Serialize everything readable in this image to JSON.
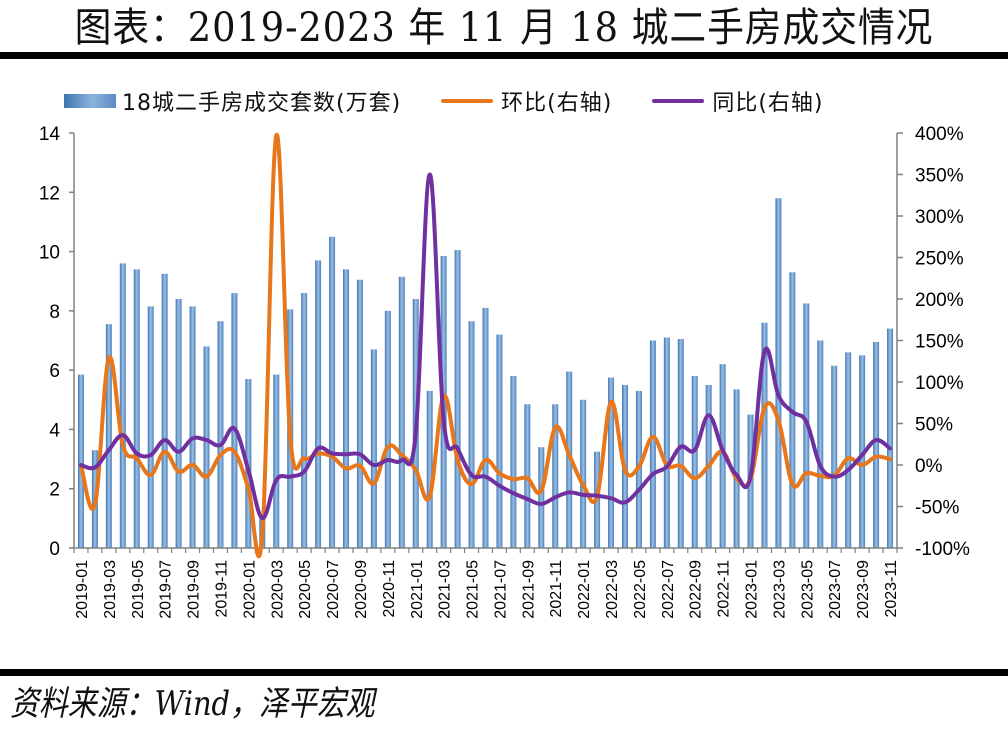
{
  "header": {
    "title": "图表：2019-2023 年 11 月 18 城二手房成交情况"
  },
  "footer": {
    "source": "资料来源：Wind，泽平宏观"
  },
  "colors": {
    "bar": "#5b8cc3",
    "mom_line": "#e8761a",
    "yoy_line": "#7030a0",
    "axis": "#808080"
  },
  "chart_data": {
    "type": "bar",
    "title": "图表：2019-2023 年 11 月 18 城二手房成交情况",
    "xlabel": "",
    "ylabel": "",
    "y_left": {
      "range": [
        0,
        14
      ],
      "ticks": [
        0,
        2,
        4,
        6,
        8,
        10,
        12,
        14
      ],
      "tick_labels": [
        "0",
        "2",
        "4",
        "6",
        "8",
        "10",
        "12",
        "14"
      ]
    },
    "y_right": {
      "range": [
        -100,
        400
      ],
      "ticks": [
        -100,
        -50,
        0,
        50,
        100,
        150,
        200,
        250,
        300,
        350,
        400
      ],
      "tick_labels": [
        "-100%",
        "-50%",
        "0%",
        "50%",
        "100%",
        "150%",
        "200%",
        "250%",
        "300%",
        "350%",
        "400%"
      ]
    },
    "grid": false,
    "legend_position": "top",
    "categories": [
      "2019-01",
      "2019-02",
      "2019-03",
      "2019-04",
      "2019-05",
      "2019-06",
      "2019-07",
      "2019-08",
      "2019-09",
      "2019-10",
      "2019-11",
      "2019-12",
      "2020-01",
      "2020-02",
      "2020-03",
      "2020-04",
      "2020-05",
      "2020-06",
      "2020-07",
      "2020-08",
      "2020-09",
      "2020-10",
      "2020-11",
      "2020-12",
      "2021-01",
      "2021-02",
      "2021-03",
      "2021-04",
      "2021-05",
      "2021-06",
      "2021-07",
      "2021-08",
      "2021-09",
      "2021-10",
      "2021-11",
      "2021-12",
      "2022-01",
      "2022-02",
      "2022-03",
      "2022-04",
      "2022-05",
      "2022-06",
      "2022-07",
      "2022-08",
      "2022-09",
      "2022-10",
      "2022-11",
      "2022-12",
      "2023-01",
      "2023-02",
      "2023-03",
      "2023-04",
      "2023-05",
      "2023-06",
      "2023-07",
      "2023-08",
      "2023-09",
      "2023-10",
      "2023-11"
    ],
    "x_tick_labels": [
      "2019-01",
      "2019-03",
      "2019-05",
      "2019-07",
      "2019-09",
      "2019-11",
      "2020-01",
      "2020-03",
      "2020-05",
      "2020-07",
      "2020-09",
      "2020-11",
      "2021-01",
      "2021-03",
      "2021-05",
      "2021-07",
      "2021-09",
      "2021-11",
      "2022-01",
      "2022-03",
      "2022-05",
      "2022-07",
      "2022-09",
      "2022-11",
      "2023-01",
      "2023-03",
      "2023-05",
      "2023-07",
      "2023-09",
      "2023-11"
    ],
    "series": [
      {
        "name": "18城二手房成交套数(万套)",
        "type": "bar",
        "axis": "left",
        "values": [
          5.85,
          3.3,
          7.55,
          9.6,
          9.4,
          8.15,
          9.25,
          8.4,
          8.15,
          6.8,
          7.65,
          8.6,
          5.7,
          1.0,
          5.85,
          8.05,
          8.6,
          9.7,
          10.5,
          9.4,
          9.05,
          6.7,
          8.0,
          9.15,
          8.4,
          5.3,
          9.85,
          10.05,
          7.65,
          8.1,
          7.2,
          5.8,
          4.85,
          3.4,
          4.85,
          5.95,
          5.0,
          3.25,
          5.75,
          5.5,
          5.3,
          7.0,
          7.1,
          7.05,
          5.8,
          5.5,
          6.2,
          5.35,
          4.5,
          7.6,
          11.8,
          9.3,
          8.25,
          7.0,
          6.15,
          6.6,
          6.5,
          6.95,
          7.4
        ]
      },
      {
        "name": "环比(右轴)",
        "type": "line",
        "axis": "right",
        "unit": "%",
        "values": [
          0,
          -48,
          129,
          24,
          8,
          -12,
          16,
          -8,
          0,
          -14,
          12,
          16,
          -28,
          -84,
          397,
          34,
          8,
          14,
          10,
          -4,
          -1,
          -22,
          22,
          12,
          -6,
          -38,
          83,
          6,
          -23,
          6,
          -10,
          -17,
          -16,
          -31,
          45,
          12,
          -24,
          -38,
          76,
          -6,
          -2,
          34,
          0,
          -1,
          -16,
          -1,
          16,
          -16,
          -17,
          69,
          54,
          -23,
          -10,
          -13,
          -13,
          8,
          0,
          10,
          7
        ]
      },
      {
        "name": "同比(右轴)",
        "type": "line",
        "axis": "right",
        "unit": "%",
        "values": [
          0,
          -3,
          18,
          36,
          14,
          12,
          30,
          16,
          32,
          30,
          24,
          44,
          -6,
          -64,
          -18,
          -14,
          -8,
          20,
          14,
          13,
          13,
          0,
          6,
          6,
          38,
          350,
          54,
          20,
          -12,
          -14,
          -25,
          -34,
          -41,
          -47,
          -39,
          -33,
          -36,
          -37,
          -40,
          -45,
          -30,
          -11,
          -2,
          22,
          18,
          60,
          18,
          -12,
          -14,
          137,
          84,
          64,
          52,
          -1,
          -14,
          -6,
          12,
          30,
          20
        ]
      }
    ]
  }
}
